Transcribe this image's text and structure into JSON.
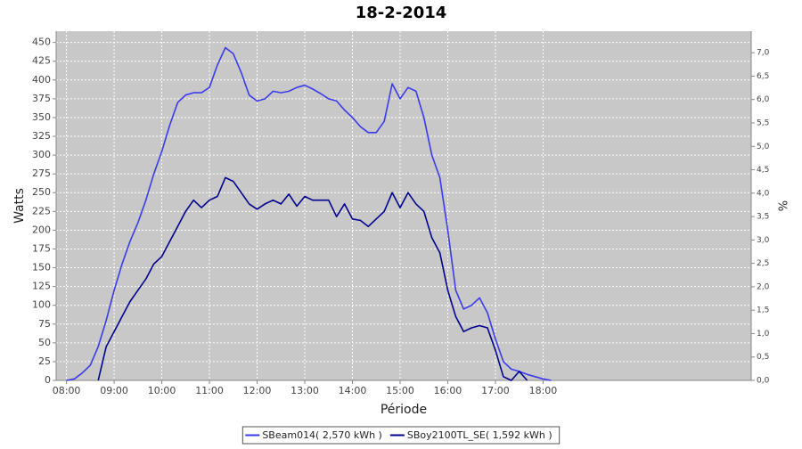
{
  "chart_data": {
    "type": "line",
    "title": "18-2-2014",
    "x_label": "Période",
    "y_label": "Watts",
    "y2_label": "%",
    "x": [
      480,
      490,
      500,
      510,
      520,
      530,
      540,
      550,
      560,
      570,
      580,
      590,
      600,
      610,
      620,
      630,
      640,
      650,
      660,
      670,
      680,
      690,
      700,
      710,
      720,
      730,
      740,
      750,
      760,
      770,
      780,
      790,
      800,
      810,
      820,
      830,
      840,
      850,
      860,
      870,
      880,
      890,
      900,
      910,
      920,
      930,
      940,
      950,
      960,
      970,
      980,
      990,
      1000,
      1010,
      1020,
      1030,
      1040,
      1050,
      1060,
      1070,
      1080,
      1090
    ],
    "series": [
      {
        "name": "SBeam014( 2,570 kWh )",
        "color": "#3a3aef",
        "values": [
          0,
          2,
          10,
          20,
          45,
          80,
          120,
          155,
          185,
          210,
          240,
          275,
          305,
          340,
          370,
          380,
          383,
          383,
          390,
          420,
          443,
          435,
          410,
          380,
          372,
          375,
          385,
          383,
          385,
          390,
          393,
          388,
          382,
          375,
          372,
          360,
          350,
          338,
          330,
          330,
          345,
          395,
          375,
          390,
          385,
          350,
          300,
          270,
          200,
          120,
          95,
          100,
          110,
          90,
          55,
          25,
          15,
          12,
          8,
          5,
          2,
          0
        ]
      },
      {
        "name": "SBoy2100TL_SE( 1,592 kWh )",
        "color": "#000090",
        "values": [
          null,
          null,
          null,
          null,
          0,
          45,
          65,
          85,
          105,
          120,
          135,
          155,
          165,
          185,
          205,
          225,
          240,
          230,
          240,
          245,
          270,
          265,
          250,
          235,
          228,
          235,
          240,
          235,
          248,
          232,
          245,
          240,
          240,
          240,
          218,
          235,
          215,
          213,
          205,
          215,
          225,
          250,
          230,
          250,
          235,
          225,
          190,
          170,
          120,
          85,
          65,
          70,
          73,
          70,
          40,
          5,
          0,
          12,
          0,
          null,
          null,
          null
        ]
      }
    ],
    "xlim": [
      467,
      1342
    ],
    "xticks": [
      {
        "value": 480,
        "label": "08:00"
      },
      {
        "value": 540,
        "label": "09:00"
      },
      {
        "value": 600,
        "label": "10:00"
      },
      {
        "value": 660,
        "label": "11:00"
      },
      {
        "value": 720,
        "label": "12:00"
      },
      {
        "value": 780,
        "label": "13:00"
      },
      {
        "value": 840,
        "label": "14:00"
      },
      {
        "value": 900,
        "label": "15:00"
      },
      {
        "value": 960,
        "label": "16:00"
      },
      {
        "value": 1020,
        "label": "17:00"
      },
      {
        "value": 1080,
        "label": "18:00"
      }
    ],
    "ylim": [
      0,
      465
    ],
    "yticks": [
      0,
      25,
      50,
      75,
      100,
      125,
      150,
      175,
      200,
      225,
      250,
      275,
      300,
      325,
      350,
      375,
      400,
      425,
      450
    ],
    "y2lim": [
      0,
      7.46
    ],
    "y2ticks": [
      {
        "value": 0,
        "label": "0,0"
      },
      {
        "value": 0.5,
        "label": "0,5"
      },
      {
        "value": 1,
        "label": "1,0"
      },
      {
        "value": 1.5,
        "label": "1,5"
      },
      {
        "value": 2,
        "label": "2,0"
      },
      {
        "value": 2.5,
        "label": "2,5"
      },
      {
        "value": 3,
        "label": "3,0"
      },
      {
        "value": 3.5,
        "label": "3,5"
      },
      {
        "value": 4,
        "label": "4,0"
      },
      {
        "value": 4.5,
        "label": "4,5"
      },
      {
        "value": 5,
        "label": "5,0"
      },
      {
        "value": 5.5,
        "label": "5,5"
      },
      {
        "value": 6,
        "label": "6,0"
      },
      {
        "value": 6.5,
        "label": "6,5"
      },
      {
        "value": 7,
        "label": "7,0"
      }
    ],
    "grid": true
  }
}
